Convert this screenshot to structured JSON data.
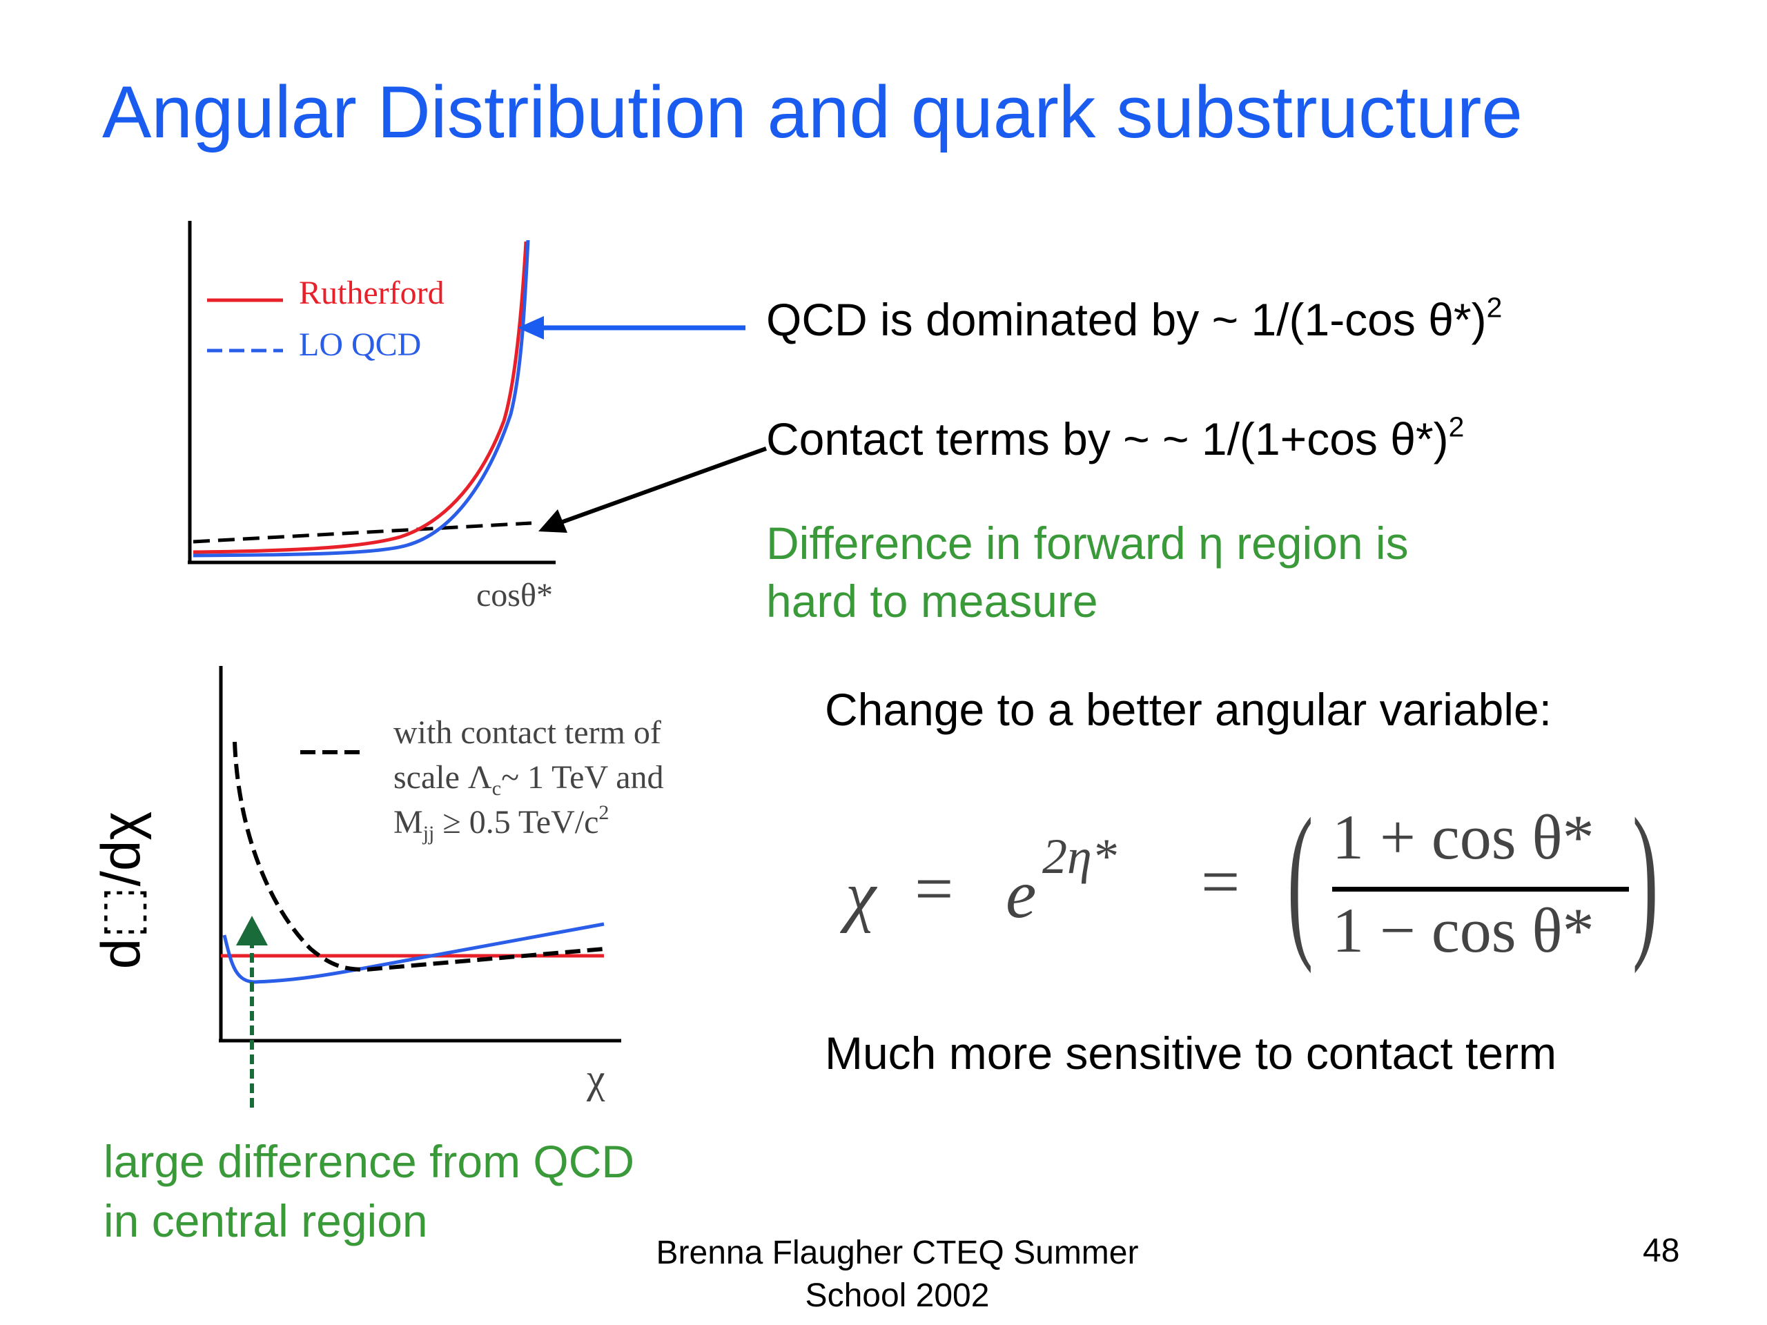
{
  "slide": {
    "title": "Angular Distribution and quark substructure",
    "qcd_line": {
      "text": "QCD is dominated by ~ 1/(1-cos θ*)",
      "exp": "2"
    },
    "contact_line": {
      "text": "Contact terms by ~ ~ 1/(1+cos θ*)",
      "exp": "2"
    },
    "forward_note": {
      "line1": "Difference in forward η region  is",
      "line2": "hard to measure"
    },
    "change_line": "Change to a better angular variable:",
    "sensitive_line": "Much more sensitive to contact term",
    "central_note": {
      "line1": "large difference from QCD",
      "line2": "in central region"
    },
    "footer": {
      "line1": "Brenna Flaugher CTEQ Summer",
      "line2": "School 2002"
    },
    "page_number": "48",
    "colors": {
      "title": "#1a5cf0",
      "green": "#3a9a3a",
      "red": "#e8202a",
      "blue": "#2a5de8",
      "arrow_blue": "#1a5cf0",
      "dark_green": "#1a6b3a"
    }
  },
  "chart_top": {
    "legend": [
      {
        "label": "Rutherford",
        "color": "#e8202a",
        "style": "solid"
      },
      {
        "label": "LO QCD",
        "color": "#2a5de8",
        "style": "dashed"
      }
    ],
    "xlabel": "cosθ*"
  },
  "chart_bottom": {
    "legend_line1": "with contact term of",
    "legend_line2a": "scale Λ",
    "legend_sub_c": "c",
    "legend_line2b": "~ 1 TeV and",
    "legend_line3a": "M",
    "legend_sub_jj": "jj",
    "legend_line3b": " ≥ 0.5 TeV/c",
    "legend_sup": "2",
    "xlabel": "χ",
    "ylabel": "d⬚/dχ"
  },
  "formula": {
    "chi": "χ",
    "eq": "=",
    "e": "e",
    "exp": "2η*",
    "eq2": "=",
    "num": "1 + cos θ*",
    "den": "1 − cos θ*"
  }
}
